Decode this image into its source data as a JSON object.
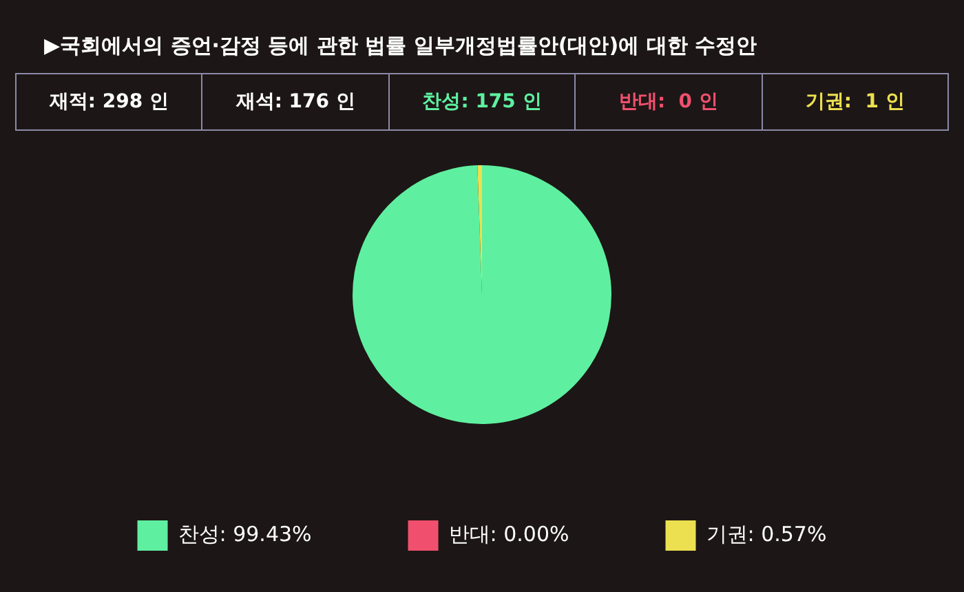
{
  "chart_data": {
    "type": "pie",
    "title": "▶국회에서의 증언·감정 등에 관한 법률 일부개정법률안(대안)에 대한 수정안",
    "annotations": [
      "재적: 298 인",
      "재석: 176 인",
      "찬성: 175 인",
      "반대:  0 인",
      "기권:  1 인"
    ],
    "categories": [
      "찬성",
      "반대",
      "기권"
    ],
    "values": [
      99.43,
      0,
      0.57
    ],
    "value_labels": [
      "99.43%",
      "0.00%",
      "0.57%"
    ],
    "colors": [
      "#5ef0a0",
      "#f0506e",
      "#ece050"
    ],
    "legend": "bottom"
  }
}
